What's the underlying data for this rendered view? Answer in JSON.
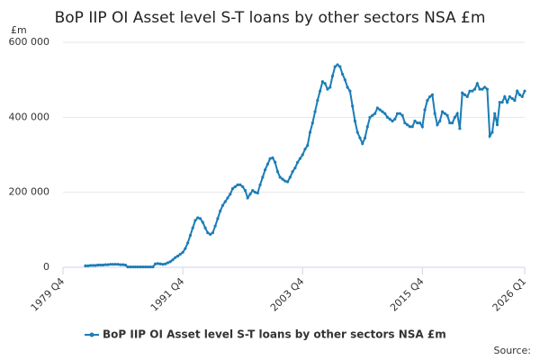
{
  "chart_data": {
    "type": "line",
    "title": "BoP IIP OI Asset level S-T loans by other sectors NSA £m",
    "y_label": "£m",
    "source": "Source:",
    "grid": true,
    "legend_position": "bottom",
    "x": [
      "1982 Q1",
      "1982 Q2",
      "1982 Q3",
      "1982 Q4",
      "1983 Q1",
      "1983 Q2",
      "1983 Q3",
      "1983 Q4",
      "1984 Q1",
      "1984 Q2",
      "1984 Q3",
      "1984 Q4",
      "1985 Q1",
      "1985 Q2",
      "1985 Q3",
      "1985 Q4",
      "1986 Q1",
      "1986 Q2",
      "1986 Q3",
      "1986 Q4",
      "1987 Q1",
      "1987 Q2",
      "1987 Q3",
      "1987 Q4",
      "1988 Q1",
      "1988 Q2",
      "1988 Q3",
      "1988 Q4",
      "1989 Q1",
      "1989 Q2",
      "1989 Q3",
      "1989 Q4",
      "1990 Q1",
      "1990 Q2",
      "1990 Q3",
      "1990 Q4",
      "1991 Q1",
      "1991 Q2",
      "1991 Q3",
      "1991 Q4",
      "1992 Q1",
      "1992 Q2",
      "1992 Q3",
      "1992 Q4",
      "1993 Q1",
      "1993 Q2",
      "1993 Q3",
      "1993 Q4",
      "1994 Q1",
      "1994 Q2",
      "1994 Q3",
      "1994 Q4",
      "1995 Q1",
      "1995 Q2",
      "1995 Q3",
      "1995 Q4",
      "1996 Q1",
      "1996 Q2",
      "1996 Q3",
      "1996 Q4",
      "1997 Q1",
      "1997 Q2",
      "1997 Q3",
      "1997 Q4",
      "1998 Q1",
      "1998 Q2",
      "1998 Q3",
      "1998 Q4",
      "1999 Q1",
      "1999 Q2",
      "1999 Q3",
      "1999 Q4",
      "2000 Q1",
      "2000 Q2",
      "2000 Q3",
      "2000 Q4",
      "2001 Q1",
      "2001 Q2",
      "2001 Q3",
      "2001 Q4",
      "2002 Q1",
      "2002 Q2",
      "2002 Q3",
      "2002 Q4",
      "2003 Q1",
      "2003 Q2",
      "2003 Q3",
      "2003 Q4",
      "2004 Q1",
      "2004 Q2",
      "2004 Q3",
      "2004 Q4",
      "2005 Q1",
      "2005 Q2",
      "2005 Q3",
      "2005 Q4",
      "2006 Q1",
      "2006 Q2",
      "2006 Q3",
      "2006 Q4",
      "2007 Q1",
      "2007 Q2",
      "2007 Q3",
      "2007 Q4",
      "2008 Q1",
      "2008 Q2",
      "2008 Q3",
      "2008 Q4",
      "2009 Q1",
      "2009 Q2",
      "2009 Q3",
      "2009 Q4",
      "2010 Q1",
      "2010 Q2",
      "2010 Q3",
      "2010 Q4",
      "2011 Q1",
      "2011 Q2",
      "2011 Q3",
      "2011 Q4",
      "2012 Q1",
      "2012 Q2",
      "2012 Q3",
      "2012 Q4",
      "2013 Q1",
      "2013 Q2",
      "2013 Q3",
      "2013 Q4",
      "2014 Q1",
      "2014 Q2",
      "2014 Q3",
      "2014 Q4",
      "2015 Q1",
      "2015 Q2",
      "2015 Q3",
      "2015 Q4",
      "2016 Q1",
      "2016 Q2",
      "2016 Q3",
      "2016 Q4",
      "2017 Q1",
      "2017 Q2",
      "2017 Q3",
      "2017 Q4",
      "2018 Q1",
      "2018 Q2",
      "2018 Q3",
      "2018 Q4",
      "2019 Q1",
      "2019 Q2",
      "2019 Q3",
      "2019 Q4",
      "2020 Q1",
      "2020 Q2",
      "2020 Q3",
      "2020 Q4",
      "2021 Q1",
      "2021 Q2",
      "2021 Q3",
      "2021 Q4",
      "2022 Q1",
      "2022 Q2",
      "2022 Q3",
      "2022 Q4",
      "2023 Q1",
      "2023 Q2",
      "2023 Q3",
      "2023 Q4",
      "2024 Q1",
      "2024 Q2",
      "2024 Q3",
      "2024 Q4",
      "2025 Q1",
      "2025 Q2",
      "2025 Q3",
      "2025 Q4",
      "2026 Q1"
    ],
    "series": [
      {
        "name": "BoP IIP OI Asset level S-T loans by other sectors NSA £m",
        "color": "#1a7db6",
        "values": [
          4000,
          4000,
          5000,
          5000,
          5000,
          6000,
          6000,
          6000,
          7000,
          7000,
          8000,
          8000,
          8000,
          8000,
          7000,
          7000,
          6000,
          1000,
          1000,
          1000,
          1000,
          1000,
          1000,
          1000,
          1000,
          1000,
          1000,
          1000,
          9000,
          10000,
          9000,
          8000,
          9000,
          12000,
          15000,
          20000,
          26000,
          30000,
          35000,
          40000,
          50000,
          65000,
          85000,
          105000,
          125000,
          132000,
          130000,
          120000,
          105000,
          92000,
          88000,
          92000,
          110000,
          130000,
          150000,
          165000,
          175000,
          185000,
          195000,
          210000,
          215000,
          220000,
          220000,
          215000,
          205000,
          185000,
          195000,
          205000,
          200000,
          198000,
          220000,
          240000,
          260000,
          275000,
          290000,
          292000,
          280000,
          255000,
          240000,
          235000,
          230000,
          228000,
          240000,
          255000,
          265000,
          280000,
          290000,
          300000,
          315000,
          325000,
          360000,
          385000,
          415000,
          445000,
          470000,
          495000,
          490000,
          475000,
          480000,
          510000,
          535000,
          540000,
          535000,
          515000,
          500000,
          480000,
          470000,
          430000,
          390000,
          360000,
          345000,
          330000,
          345000,
          375000,
          400000,
          405000,
          410000,
          425000,
          420000,
          415000,
          410000,
          400000,
          395000,
          390000,
          395000,
          410000,
          410000,
          405000,
          385000,
          380000,
          375000,
          375000,
          390000,
          385000,
          385000,
          375000,
          420000,
          445000,
          455000,
          460000,
          410000,
          380000,
          390000,
          415000,
          410000,
          405000,
          385000,
          385000,
          400000,
          410000,
          370000,
          465000,
          460000,
          455000,
          470000,
          470000,
          475000,
          490000,
          475000,
          475000,
          480000,
          475000,
          350000,
          360000,
          410000,
          380000,
          440000,
          440000,
          455000,
          440000,
          455000,
          450000,
          445000,
          470000,
          460000,
          455000,
          470000
        ]
      }
    ],
    "xlim": [
      "1979 Q4",
      "2026 Q1"
    ],
    "xticks": [
      "1979 Q4",
      "1991 Q4",
      "2003 Q4",
      "2015 Q4",
      "2026 Q1"
    ],
    "ylim": [
      0,
      600000
    ],
    "yticks": [
      0,
      {
        "value": 200000,
        "label": "200 000"
      },
      {
        "value": 400000,
        "label": "400 000"
      },
      {
        "value": 600000,
        "label": "600 000"
      }
    ]
  }
}
